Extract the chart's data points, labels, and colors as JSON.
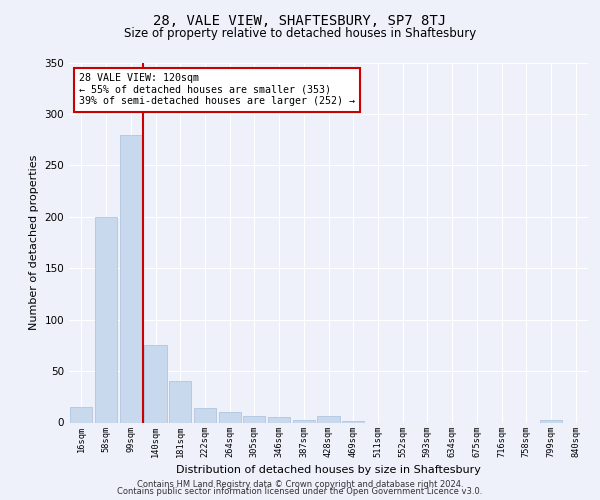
{
  "title1": "28, VALE VIEW, SHAFTESBURY, SP7 8TJ",
  "title2": "Size of property relative to detached houses in Shaftesbury",
  "xlabel": "Distribution of detached houses by size in Shaftesbury",
  "ylabel": "Number of detached properties",
  "bar_labels": [
    "16sqm",
    "58sqm",
    "99sqm",
    "140sqm",
    "181sqm",
    "222sqm",
    "264sqm",
    "305sqm",
    "346sqm",
    "387sqm",
    "428sqm",
    "469sqm",
    "511sqm",
    "552sqm",
    "593sqm",
    "634sqm",
    "675sqm",
    "716sqm",
    "758sqm",
    "799sqm",
    "840sqm"
  ],
  "bar_values": [
    15,
    200,
    280,
    75,
    40,
    14,
    10,
    6,
    5,
    2,
    6,
    1,
    0,
    0,
    0,
    0,
    0,
    0,
    0,
    2,
    0
  ],
  "bar_color": "#c8d9ee",
  "bar_edge_color": "#a8c0de",
  "vline_x_index": 2.5,
  "annotation_line1": "28 VALE VIEW: 120sqm",
  "annotation_line2": "← 55% of detached houses are smaller (353)",
  "annotation_line3": "39% of semi-detached houses are larger (252) →",
  "annotation_box_color": "#ffffff",
  "annotation_edge_color": "#cc0000",
  "vline_color": "#cc0000",
  "ylim": [
    0,
    350
  ],
  "yticks": [
    0,
    50,
    100,
    150,
    200,
    250,
    300,
    350
  ],
  "footer1": "Contains HM Land Registry data © Crown copyright and database right 2024.",
  "footer2": "Contains public sector information licensed under the Open Government Licence v3.0.",
  "bg_color": "#eef1fa",
  "plot_bg_color": "#eef1fa"
}
